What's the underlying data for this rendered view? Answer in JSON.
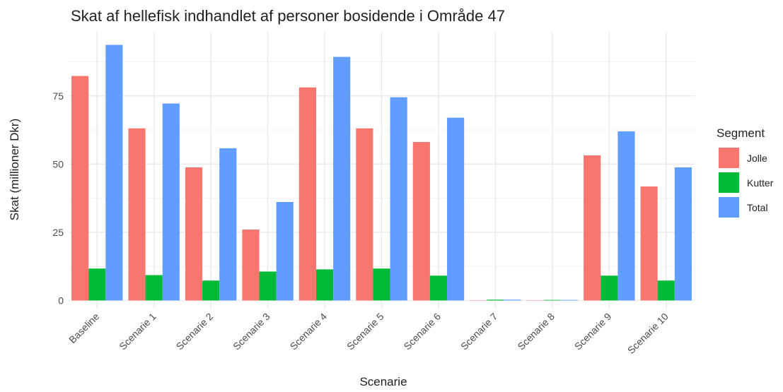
{
  "chart_data": {
    "type": "bar",
    "title": "Skat af hellefisk indhandlet af personer bosidende i Område 47",
    "x_label": "Scenarie",
    "y_label": "Skat (millioner Dkr)",
    "legend_title": "Segment",
    "categories": [
      "Baseline",
      "Scenarie 1",
      "Scenarie 2",
      "Scenarie 3",
      "Scenarie 4",
      "Scenarie 5",
      "Scenarie 6",
      "Scenarie 7",
      "Scenarie 8",
      "Scenarie 9",
      "Scenarie 10"
    ],
    "series": [
      {
        "name": "Jolle",
        "color": "#f8766d",
        "values": [
          82.3,
          63.1,
          48.8,
          26.0,
          78.1,
          63.1,
          58.1,
          0.1,
          0.1,
          53.2,
          41.8
        ]
      },
      {
        "name": "Kutter",
        "color": "#00ba38",
        "values": [
          11.7,
          9.3,
          7.3,
          10.6,
          11.4,
          11.7,
          9.1,
          0.3,
          0.2,
          9.1,
          7.3
        ]
      },
      {
        "name": "Total",
        "color": "#619cff",
        "values": [
          93.7,
          72.2,
          55.8,
          36.1,
          89.3,
          74.5,
          67.0,
          0.3,
          0.2,
          62.0,
          48.8
        ]
      }
    ],
    "ylim": [
      -3,
      98.5
    ],
    "yticks": [
      0,
      25,
      50,
      75
    ],
    "yminor": [
      12.5,
      37.5,
      62.5,
      87.5
    ],
    "grid": true,
    "legend": "right"
  }
}
